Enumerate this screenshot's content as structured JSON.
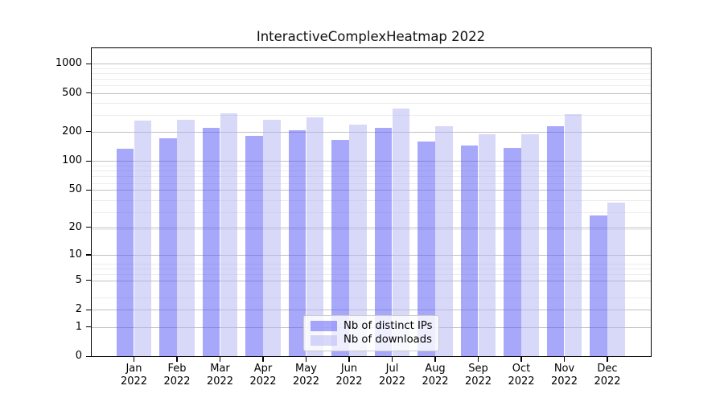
{
  "chart_data": {
    "type": "bar",
    "title": "InteractiveComplexHeatmap 2022",
    "yscale": "log(value+1)",
    "ylim": [
      0,
      1465
    ],
    "yticks": [
      1000,
      500,
      200,
      100,
      50,
      20,
      10,
      5,
      2,
      1,
      0
    ],
    "grid": "both",
    "legend_position": "bottom-center",
    "categories": [
      "Jan",
      "Feb",
      "Mar",
      "Apr",
      "May",
      "Jun",
      "Jul",
      "Aug",
      "Sep",
      "Oct",
      "Nov",
      "Dec"
    ],
    "year_label": "2022",
    "series": [
      {
        "name": "Nb of distinct IPs",
        "color": "#5252f6",
        "alpha": 0.5,
        "values": [
          134,
          170,
          221,
          180,
          209,
          165,
          219,
          159,
          144,
          136,
          229,
          27
        ]
      },
      {
        "name": "Nb of downloads",
        "color": "#b2b2f2",
        "alpha": 0.5,
        "values": [
          263,
          267,
          308,
          266,
          280,
          236,
          345,
          228,
          189,
          190,
          302,
          37
        ]
      }
    ]
  }
}
